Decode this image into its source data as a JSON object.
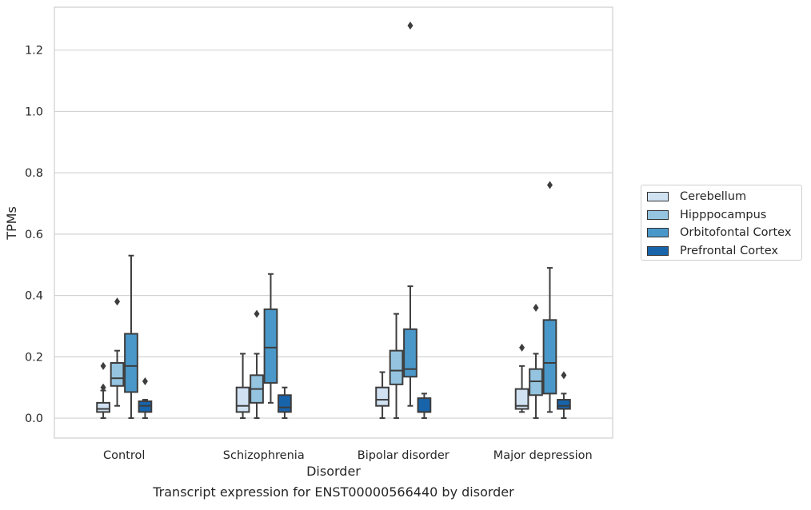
{
  "chart_data": {
    "type": "boxplot",
    "caption": "Transcript expression for ENST00000566440 by disorder",
    "xlabel": "Disorder",
    "ylabel": "TPMs",
    "ylim": [
      -0.065,
      1.34
    ],
    "yticks": [
      0.0,
      0.2,
      0.4,
      0.6,
      0.8,
      1.0,
      1.2
    ],
    "ytick_labels": [
      "0.0",
      "0.2",
      "0.4",
      "0.6",
      "0.8",
      "1.0",
      "1.2"
    ],
    "grid": "horizontal",
    "legend_position": "right",
    "categories": [
      "Control",
      "Schizophrenia",
      "Bipolar disorder",
      "Major depression"
    ],
    "series": [
      {
        "name": "Cerebellum",
        "color": "#d0e1f2",
        "boxes": [
          {
            "whislo": 0.0,
            "q1": 0.02,
            "med": 0.03,
            "q3": 0.05,
            "whishi": 0.09,
            "fliers": [
              0.1,
              0.17
            ]
          },
          {
            "whislo": 0.0,
            "q1": 0.02,
            "med": 0.04,
            "q3": 0.1,
            "whishi": 0.21,
            "fliers": []
          },
          {
            "whislo": 0.0,
            "q1": 0.04,
            "med": 0.06,
            "q3": 0.1,
            "whishi": 0.15,
            "fliers": []
          },
          {
            "whislo": 0.02,
            "q1": 0.03,
            "med": 0.04,
            "q3": 0.095,
            "whishi": 0.17,
            "fliers": [
              0.23
            ]
          }
        ]
      },
      {
        "name": "Hipppocampus",
        "color": "#94c4df",
        "boxes": [
          {
            "whislo": 0.04,
            "q1": 0.105,
            "med": 0.13,
            "q3": 0.18,
            "whishi": 0.22,
            "fliers": [
              0.38
            ]
          },
          {
            "whislo": 0.0,
            "q1": 0.05,
            "med": 0.095,
            "q3": 0.14,
            "whishi": 0.21,
            "fliers": [
              0.34
            ]
          },
          {
            "whislo": 0.0,
            "q1": 0.11,
            "med": 0.155,
            "q3": 0.22,
            "whishi": 0.34,
            "fliers": []
          },
          {
            "whislo": 0.0,
            "q1": 0.075,
            "med": 0.12,
            "q3": 0.16,
            "whishi": 0.21,
            "fliers": [
              0.36
            ]
          }
        ]
      },
      {
        "name": "Orbitofontal Cortex",
        "color": "#4a98c9",
        "boxes": [
          {
            "whislo": 0.0,
            "q1": 0.085,
            "med": 0.17,
            "q3": 0.275,
            "whishi": 0.53,
            "fliers": []
          },
          {
            "whislo": 0.05,
            "q1": 0.115,
            "med": 0.23,
            "q3": 0.355,
            "whishi": 0.47,
            "fliers": []
          },
          {
            "whislo": 0.04,
            "q1": 0.135,
            "med": 0.16,
            "q3": 0.29,
            "whishi": 0.43,
            "fliers": [
              1.28
            ]
          },
          {
            "whislo": 0.02,
            "q1": 0.08,
            "med": 0.18,
            "q3": 0.32,
            "whishi": 0.49,
            "fliers": [
              0.76
            ]
          }
        ]
      },
      {
        "name": "Prefrontal Cortex",
        "color": "#1764ab",
        "boxes": [
          {
            "whislo": 0.0,
            "q1": 0.02,
            "med": 0.04,
            "q3": 0.055,
            "whishi": 0.06,
            "fliers": [
              0.12
            ]
          },
          {
            "whislo": 0.0,
            "q1": 0.02,
            "med": 0.035,
            "q3": 0.075,
            "whishi": 0.1,
            "fliers": []
          },
          {
            "whislo": 0.0,
            "q1": 0.02,
            "med": 0.02,
            "q3": 0.065,
            "whishi": 0.08,
            "fliers": []
          },
          {
            "whislo": 0.0,
            "q1": 0.03,
            "med": 0.04,
            "q3": 0.06,
            "whishi": 0.08,
            "fliers": [
              0.14
            ]
          }
        ]
      }
    ]
  }
}
